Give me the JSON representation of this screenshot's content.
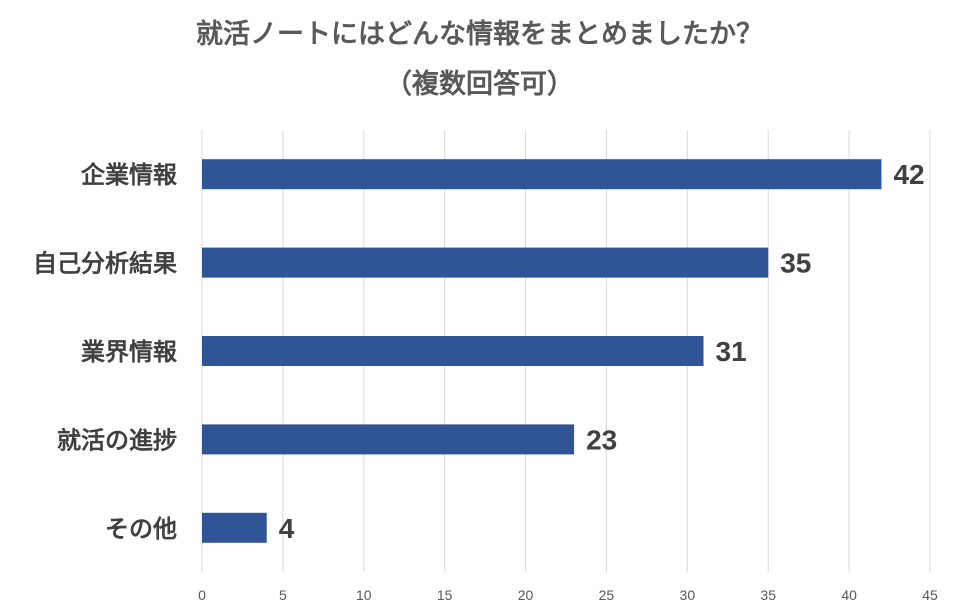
{
  "chart_data": {
    "type": "bar",
    "orientation": "horizontal",
    "title": "就活ノートにはどんな情報をまとめましたか？",
    "subtitle": "（複数回答可）",
    "categories": [
      "企業情報",
      "自己分析結果",
      "業界情報",
      "就活の進捗",
      "その他"
    ],
    "values": [
      42,
      35,
      31,
      23,
      4
    ],
    "xlim": [
      0,
      45
    ],
    "ticks": [
      0,
      5,
      10,
      15,
      20,
      25,
      30,
      35,
      40,
      45
    ],
    "grid": true,
    "legend": "none",
    "bar_color": "#2f5597"
  }
}
